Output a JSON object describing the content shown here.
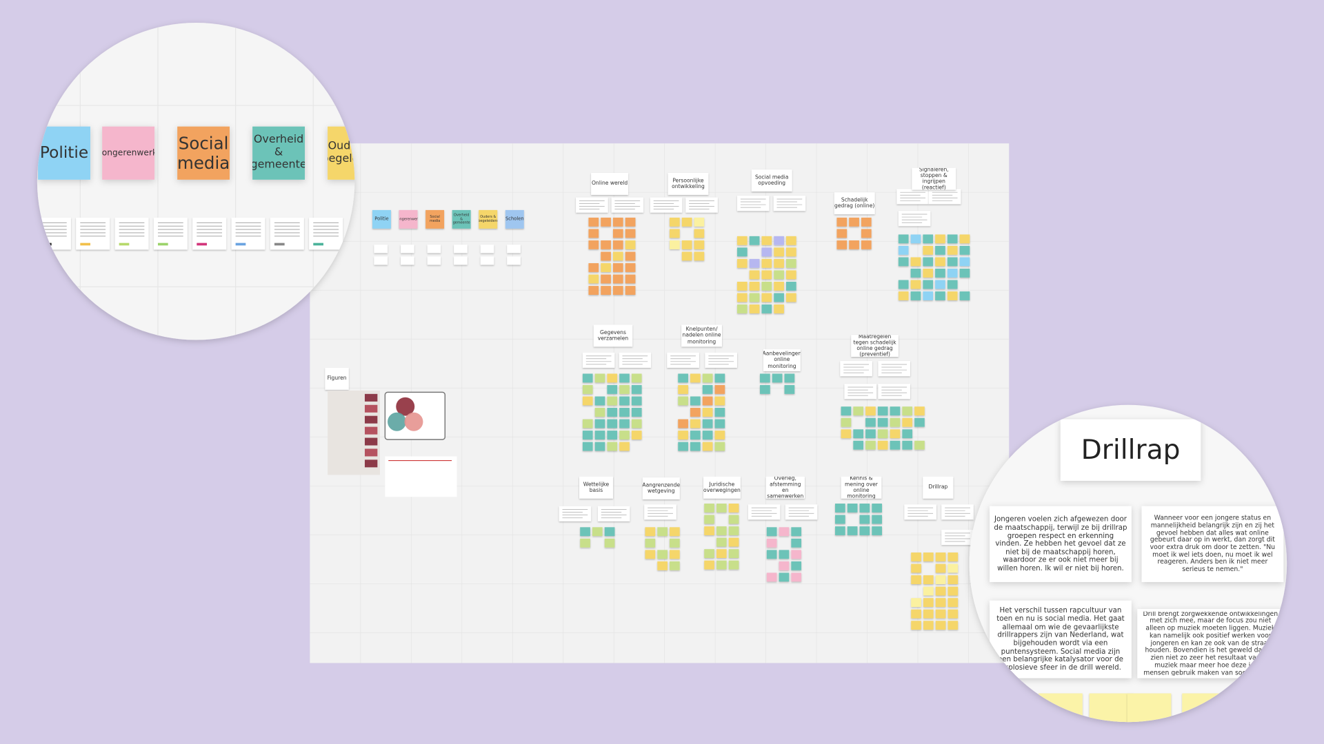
{
  "board": {
    "headings": [
      "Online wereld",
      "Persoonlijke ontwikkeling",
      "Social media opvoeding",
      "Schadelijk gedrag (online)",
      "Signaleren, stoppen & ingrijpen (reactief)",
      "Gegevens verzamelen",
      "Knelpunten/ nadelen online monitoring",
      "Aanbevelingen online monitoring",
      "Maatregelen tegen schadelijk online gedrag (preventief)",
      "Figuren",
      "Wettelijke basis",
      "Aangrenzende wetgeving",
      "Juridische overwegingen",
      "Overleg, afstemming en samenwerken",
      "Kennis & mening over online monitoring",
      "Drillrap"
    ],
    "categories": [
      "Politie",
      "Jongerenwerk",
      "Social media",
      "Overheid & gemeente",
      "Ouders & begeleiders",
      "Scholen"
    ]
  },
  "zoom_right": {
    "title": "Drillrap",
    "quotes": [
      "Jongeren voelen zich afgewezen door de maatschappij, terwijl ze bij drillrap groepen respect en erkenning vinden. Ze hebben het gevoel dat ze niet bij de maatschappij horen, waardoor ze er ook niet meer bij willen horen. Ik wil er niet bij horen.",
      "Wanneer voor een jongere status en mannelijkheid belangrijk zijn en zij het gevoel hebben dat alles wat online gebeurt daar op in werkt, dan zorgt dit voor extra druk om door te zetten. \"Nu moet ik wel iets doen, nu moet ik wel reageren. Anders ben ik niet meer serieus te nemen.\"",
      "Het verschil tussen rapcultuur van toen en nu is social media. Het gaat allemaal om wie de gevaarlijkste drillrappers zijn van Nederland, wat bijgehouden wordt via een puntensysteem. Social media zijn een belangrijke katalysator voor de explosieve sfeer in de drill wereld.",
      "Drill brengt zorgwekkende ontwikkelingen met zich mee, maar de focus zou niet alleen op muziek moeten liggen. Muziek kan namelijk ook positief werken voor jongeren en kan ze ook van de straat houden. Bovendien is het geweld dat we zien niet zo zeer het resultaat van de muziek maar meer hoe deze jonge mensen gebruik maken van social media."
    ]
  }
}
